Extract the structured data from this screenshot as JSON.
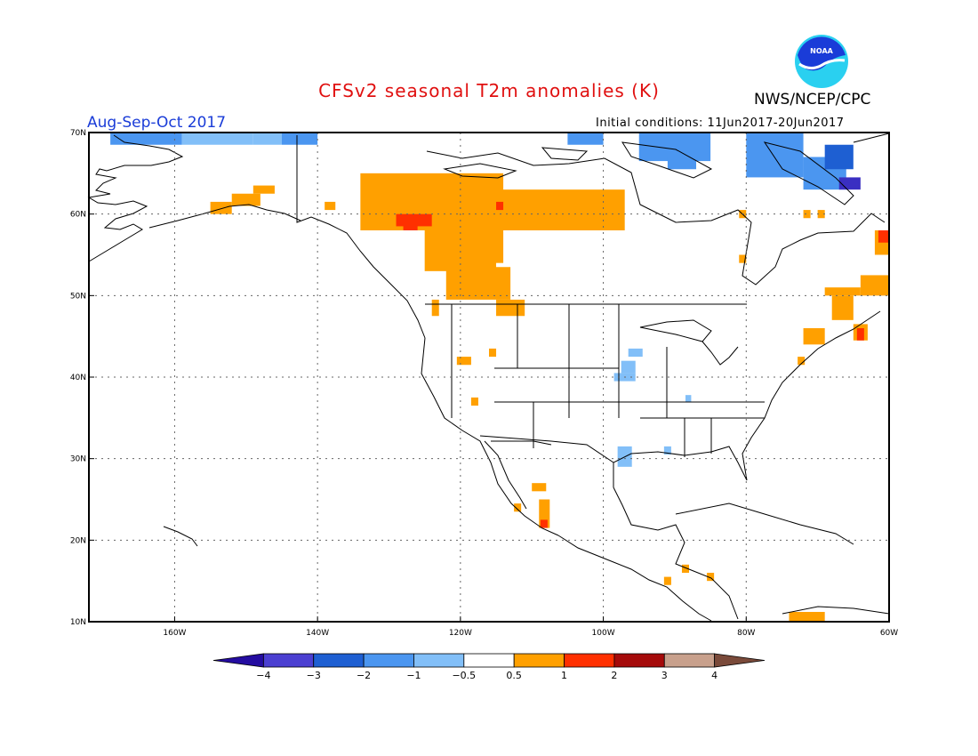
{
  "header": {
    "title": "CFSv2 seasonal T2m anomalies (K)",
    "period": "Aug-Sep-Oct 2017",
    "agency": "NWS/NCEP/CPC",
    "initial_conditions": "Initial conditions: 11Jun2017-20Jun2017",
    "logo_text": "NOAA"
  },
  "colors": {
    "title": "#e01010",
    "period": "#1a3cd8",
    "frame": "#000000",
    "grid": "#666666"
  },
  "map": {
    "lon_range": [
      -172,
      -60
    ],
    "lat_range": [
      10,
      70
    ],
    "lat_ticks": [
      {
        "value": 70,
        "label": "70N"
      },
      {
        "value": 60,
        "label": "60N"
      },
      {
        "value": 50,
        "label": "50N"
      },
      {
        "value": 40,
        "label": "40N"
      },
      {
        "value": 30,
        "label": "30N"
      },
      {
        "value": 20,
        "label": "20N"
      },
      {
        "value": 10,
        "label": "10N"
      }
    ],
    "lon_ticks": [
      {
        "value": -160,
        "label": "160W"
      },
      {
        "value": -140,
        "label": "140W"
      },
      {
        "value": -120,
        "label": "120W"
      },
      {
        "value": -100,
        "label": "100W"
      },
      {
        "value": -80,
        "label": "80W"
      },
      {
        "value": -60,
        "label": "60W"
      }
    ],
    "anomaly_cells": [
      {
        "lon": -169,
        "lat": 68.5,
        "w": 10,
        "h": 1.5,
        "color": "#4b96f0"
      },
      {
        "lon": -159,
        "lat": 68.5,
        "w": 10,
        "h": 1.5,
        "color": "#82bff8"
      },
      {
        "lon": -149,
        "lat": 68.5,
        "w": 4,
        "h": 1.5,
        "color": "#82bff8"
      },
      {
        "lon": -145,
        "lat": 68.5,
        "w": 5,
        "h": 1.5,
        "color": "#4b96f0"
      },
      {
        "lon": -105,
        "lat": 68.5,
        "w": 5,
        "h": 1.5,
        "color": "#4b96f0"
      },
      {
        "lon": -95,
        "lat": 66.5,
        "w": 10,
        "h": 3.5,
        "color": "#4b96f0"
      },
      {
        "lon": -91,
        "lat": 65.5,
        "w": 4,
        "h": 1.5,
        "color": "#4b96f0"
      },
      {
        "lon": -80,
        "lat": 64.5,
        "w": 8,
        "h": 5.5,
        "color": "#4b96f0"
      },
      {
        "lon": -72,
        "lat": 63,
        "w": 6,
        "h": 4,
        "color": "#4b96f0"
      },
      {
        "lon": -69,
        "lat": 65.5,
        "w": 4,
        "h": 3,
        "color": "#1e5fd2"
      },
      {
        "lon": -67,
        "lat": 63,
        "w": 3,
        "h": 1.5,
        "color": "#3a2fc2"
      },
      {
        "lon": -134,
        "lat": 58,
        "w": 20,
        "h": 7,
        "color": "#ffa000"
      },
      {
        "lon": -125,
        "lat": 53,
        "w": 10,
        "h": 5,
        "color": "#ffa000"
      },
      {
        "lon": -122,
        "lat": 49.5,
        "w": 9,
        "h": 4,
        "color": "#ffa000"
      },
      {
        "lon": -115,
        "lat": 58,
        "w": 18,
        "h": 5,
        "color": "#ffa000"
      },
      {
        "lon": -118,
        "lat": 54,
        "w": 4,
        "h": 4,
        "color": "#ffa000"
      },
      {
        "lon": -129,
        "lat": 58.5,
        "w": 5,
        "h": 1.5,
        "color": "#ff3000"
      },
      {
        "lon": -128,
        "lat": 58,
        "w": 2,
        "h": 1,
        "color": "#ff3000"
      },
      {
        "lon": -115,
        "lat": 60.5,
        "w": 1,
        "h": 1,
        "color": "#ff3000"
      },
      {
        "lon": -155,
        "lat": 60,
        "w": 3,
        "h": 1.5,
        "color": "#ffa000"
      },
      {
        "lon": -152,
        "lat": 61,
        "w": 4,
        "h": 1.5,
        "color": "#ffa000"
      },
      {
        "lon": -149,
        "lat": 62.5,
        "w": 3,
        "h": 1,
        "color": "#ffa000"
      },
      {
        "lon": -139,
        "lat": 60.5,
        "w": 1.5,
        "h": 1,
        "color": "#ffa000"
      },
      {
        "lon": -124,
        "lat": 47.5,
        "w": 1,
        "h": 2,
        "color": "#ffa000"
      },
      {
        "lon": -115,
        "lat": 47.5,
        "w": 4,
        "h": 2,
        "color": "#ffa000"
      },
      {
        "lon": -120.5,
        "lat": 41.5,
        "w": 2,
        "h": 1,
        "color": "#ffa000"
      },
      {
        "lon": -116,
        "lat": 42.5,
        "w": 1,
        "h": 1,
        "color": "#ffa000"
      },
      {
        "lon": -118.5,
        "lat": 36.5,
        "w": 1,
        "h": 1,
        "color": "#ffa000"
      },
      {
        "lon": -110,
        "lat": 26,
        "w": 2,
        "h": 1,
        "color": "#ffa000"
      },
      {
        "lon": -109,
        "lat": 21.5,
        "w": 1.5,
        "h": 3.5,
        "color": "#ffa000"
      },
      {
        "lon": -108.8,
        "lat": 21.5,
        "w": 1,
        "h": 1,
        "color": "#ff3000"
      },
      {
        "lon": -112.5,
        "lat": 23.5,
        "w": 1,
        "h": 1,
        "color": "#ffa000"
      },
      {
        "lon": -98.5,
        "lat": 39.5,
        "w": 3,
        "h": 1,
        "color": "#82bff8"
      },
      {
        "lon": -97.5,
        "lat": 40.5,
        "w": 2,
        "h": 1.5,
        "color": "#82bff8"
      },
      {
        "lon": -96.5,
        "lat": 42.5,
        "w": 2,
        "h": 1,
        "color": "#82bff8"
      },
      {
        "lon": -98,
        "lat": 29,
        "w": 2,
        "h": 2.5,
        "color": "#82bff8"
      },
      {
        "lon": -91.5,
        "lat": 30.5,
        "w": 1,
        "h": 1,
        "color": "#82bff8"
      },
      {
        "lon": -88.5,
        "lat": 37,
        "w": 0.8,
        "h": 0.8,
        "color": "#82bff8"
      },
      {
        "lon": -81,
        "lat": 59.5,
        "w": 1,
        "h": 1,
        "color": "#ffa000"
      },
      {
        "lon": -81,
        "lat": 54,
        "w": 1,
        "h": 1,
        "color": "#ffa000"
      },
      {
        "lon": -72,
        "lat": 59.5,
        "w": 1,
        "h": 1,
        "color": "#ffa000"
      },
      {
        "lon": -70,
        "lat": 59.5,
        "w": 1,
        "h": 1,
        "color": "#ffa000"
      },
      {
        "lon": -62,
        "lat": 55,
        "w": 2,
        "h": 3,
        "color": "#ffa000"
      },
      {
        "lon": -61.5,
        "lat": 56.5,
        "w": 1.5,
        "h": 1.5,
        "color": "#ff3000"
      },
      {
        "lon": -64,
        "lat": 50,
        "w": 4,
        "h": 2.5,
        "color": "#ffa000"
      },
      {
        "lon": -69,
        "lat": 50,
        "w": 5,
        "h": 1,
        "color": "#ffa000"
      },
      {
        "lon": -68,
        "lat": 47,
        "w": 3,
        "h": 3,
        "color": "#ffa000"
      },
      {
        "lon": -72,
        "lat": 44,
        "w": 3,
        "h": 2,
        "color": "#ffa000"
      },
      {
        "lon": -65,
        "lat": 44.5,
        "w": 2,
        "h": 2,
        "color": "#ffa000"
      },
      {
        "lon": -64.5,
        "lat": 44.5,
        "w": 1,
        "h": 1.5,
        "color": "#ff3000"
      },
      {
        "lon": -72.8,
        "lat": 41.5,
        "w": 1,
        "h": 1,
        "color": "#ffa000"
      },
      {
        "lon": -89,
        "lat": 16,
        "w": 1,
        "h": 1,
        "color": "#ffa000"
      },
      {
        "lon": -91.5,
        "lat": 14.5,
        "w": 1,
        "h": 1,
        "color": "#ffa000"
      },
      {
        "lon": -85.5,
        "lat": 15,
        "w": 1,
        "h": 1,
        "color": "#ffa000"
      },
      {
        "lon": -74,
        "lat": 10,
        "w": 5,
        "h": 1.2,
        "color": "#ffa000"
      },
      {
        "lon": -70.5,
        "lat": 10,
        "w": 1,
        "h": 1,
        "color": "#ffa000"
      }
    ]
  },
  "colorbar": {
    "colors": [
      "#240ca0",
      "#4b3fd1",
      "#1e5fd2",
      "#4b96f0",
      "#82bff8",
      "#ffffff",
      "#ffa000",
      "#ff3000",
      "#a50a0a",
      "#c8a08c",
      "#7a4a3a"
    ],
    "labels": [
      "−4",
      "−3",
      "−2",
      "−1",
      "−0.5",
      "0.5",
      "1",
      "2",
      "3",
      "4"
    ]
  }
}
